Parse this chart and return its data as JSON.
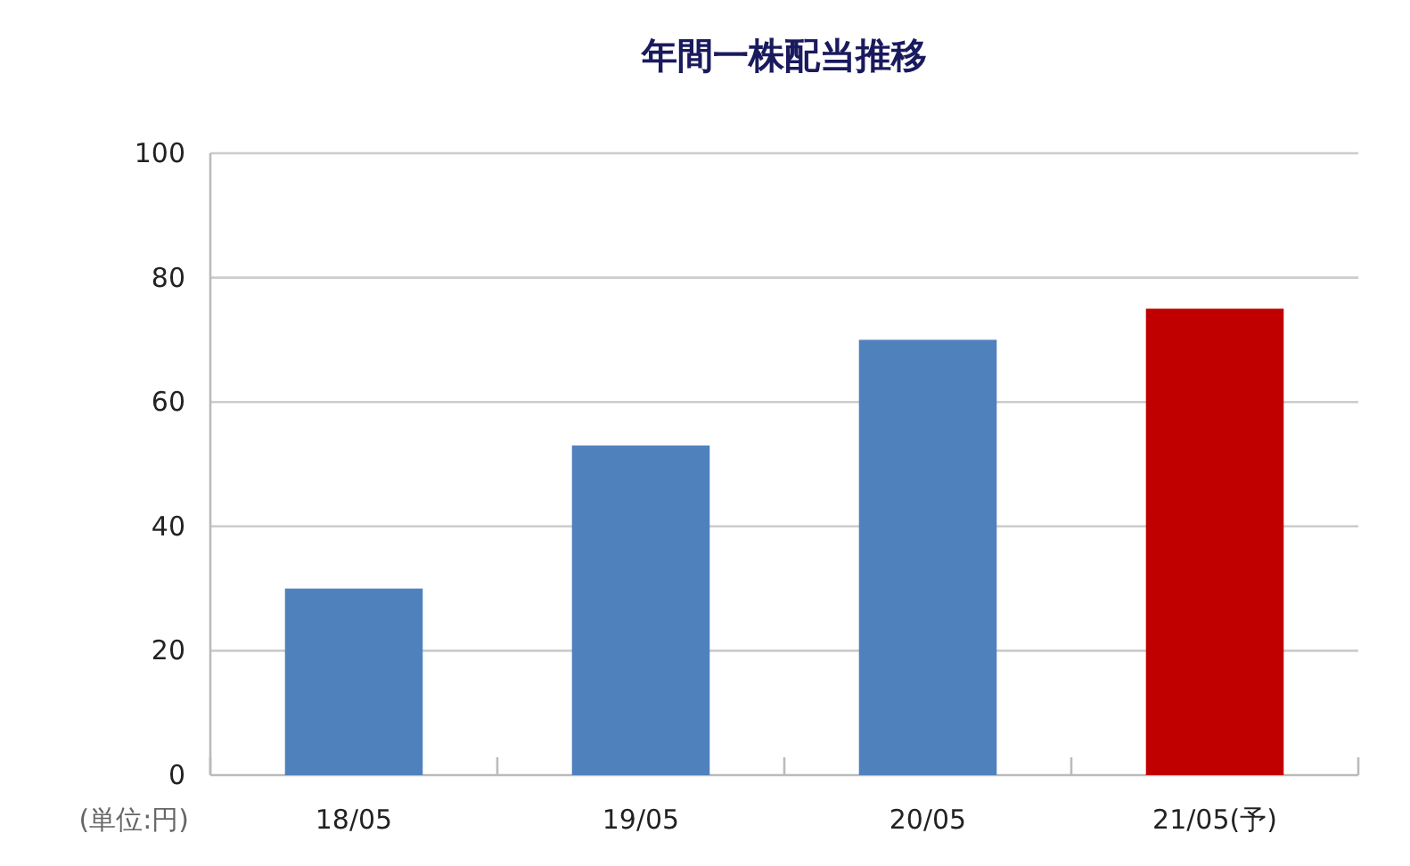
{
  "chart_data": {
    "type": "bar",
    "title": "年間一株配当推移",
    "ylabel": "(単位:円)",
    "categories": [
      "18/05",
      "19/05",
      "20/05",
      "21/05(予)"
    ],
    "values": [
      30,
      53,
      70,
      75
    ],
    "colors": [
      "#4f81bd",
      "#4f81bd",
      "#4f81bd",
      "#c00000"
    ],
    "ylim": [
      0,
      100
    ],
    "yticks": [
      0,
      20,
      40,
      60,
      80,
      100
    ],
    "grid": "y"
  }
}
